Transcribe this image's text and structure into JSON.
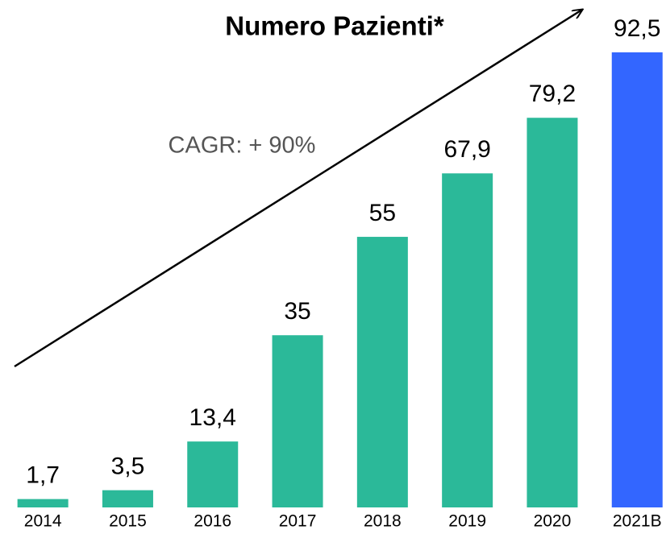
{
  "chart_data": {
    "type": "bar",
    "title": "Numero Pazienti*",
    "annotation": "CAGR: + 90%",
    "categories": [
      "2014",
      "2015",
      "2016",
      "2017",
      "2018",
      "2019",
      "2020",
      "2021B"
    ],
    "values": [
      1.7,
      3.5,
      13.4,
      35,
      55,
      67.9,
      79.2,
      92.5
    ],
    "value_labels": [
      "1,7",
      "3,5",
      "13,4",
      "35",
      "55",
      "67,9",
      "79,2",
      "92,5"
    ],
    "colors": [
      "#2bb999",
      "#2bb999",
      "#2bb999",
      "#2bb999",
      "#2bb999",
      "#2bb999",
      "#2bb999",
      "#3366ff"
    ]
  }
}
